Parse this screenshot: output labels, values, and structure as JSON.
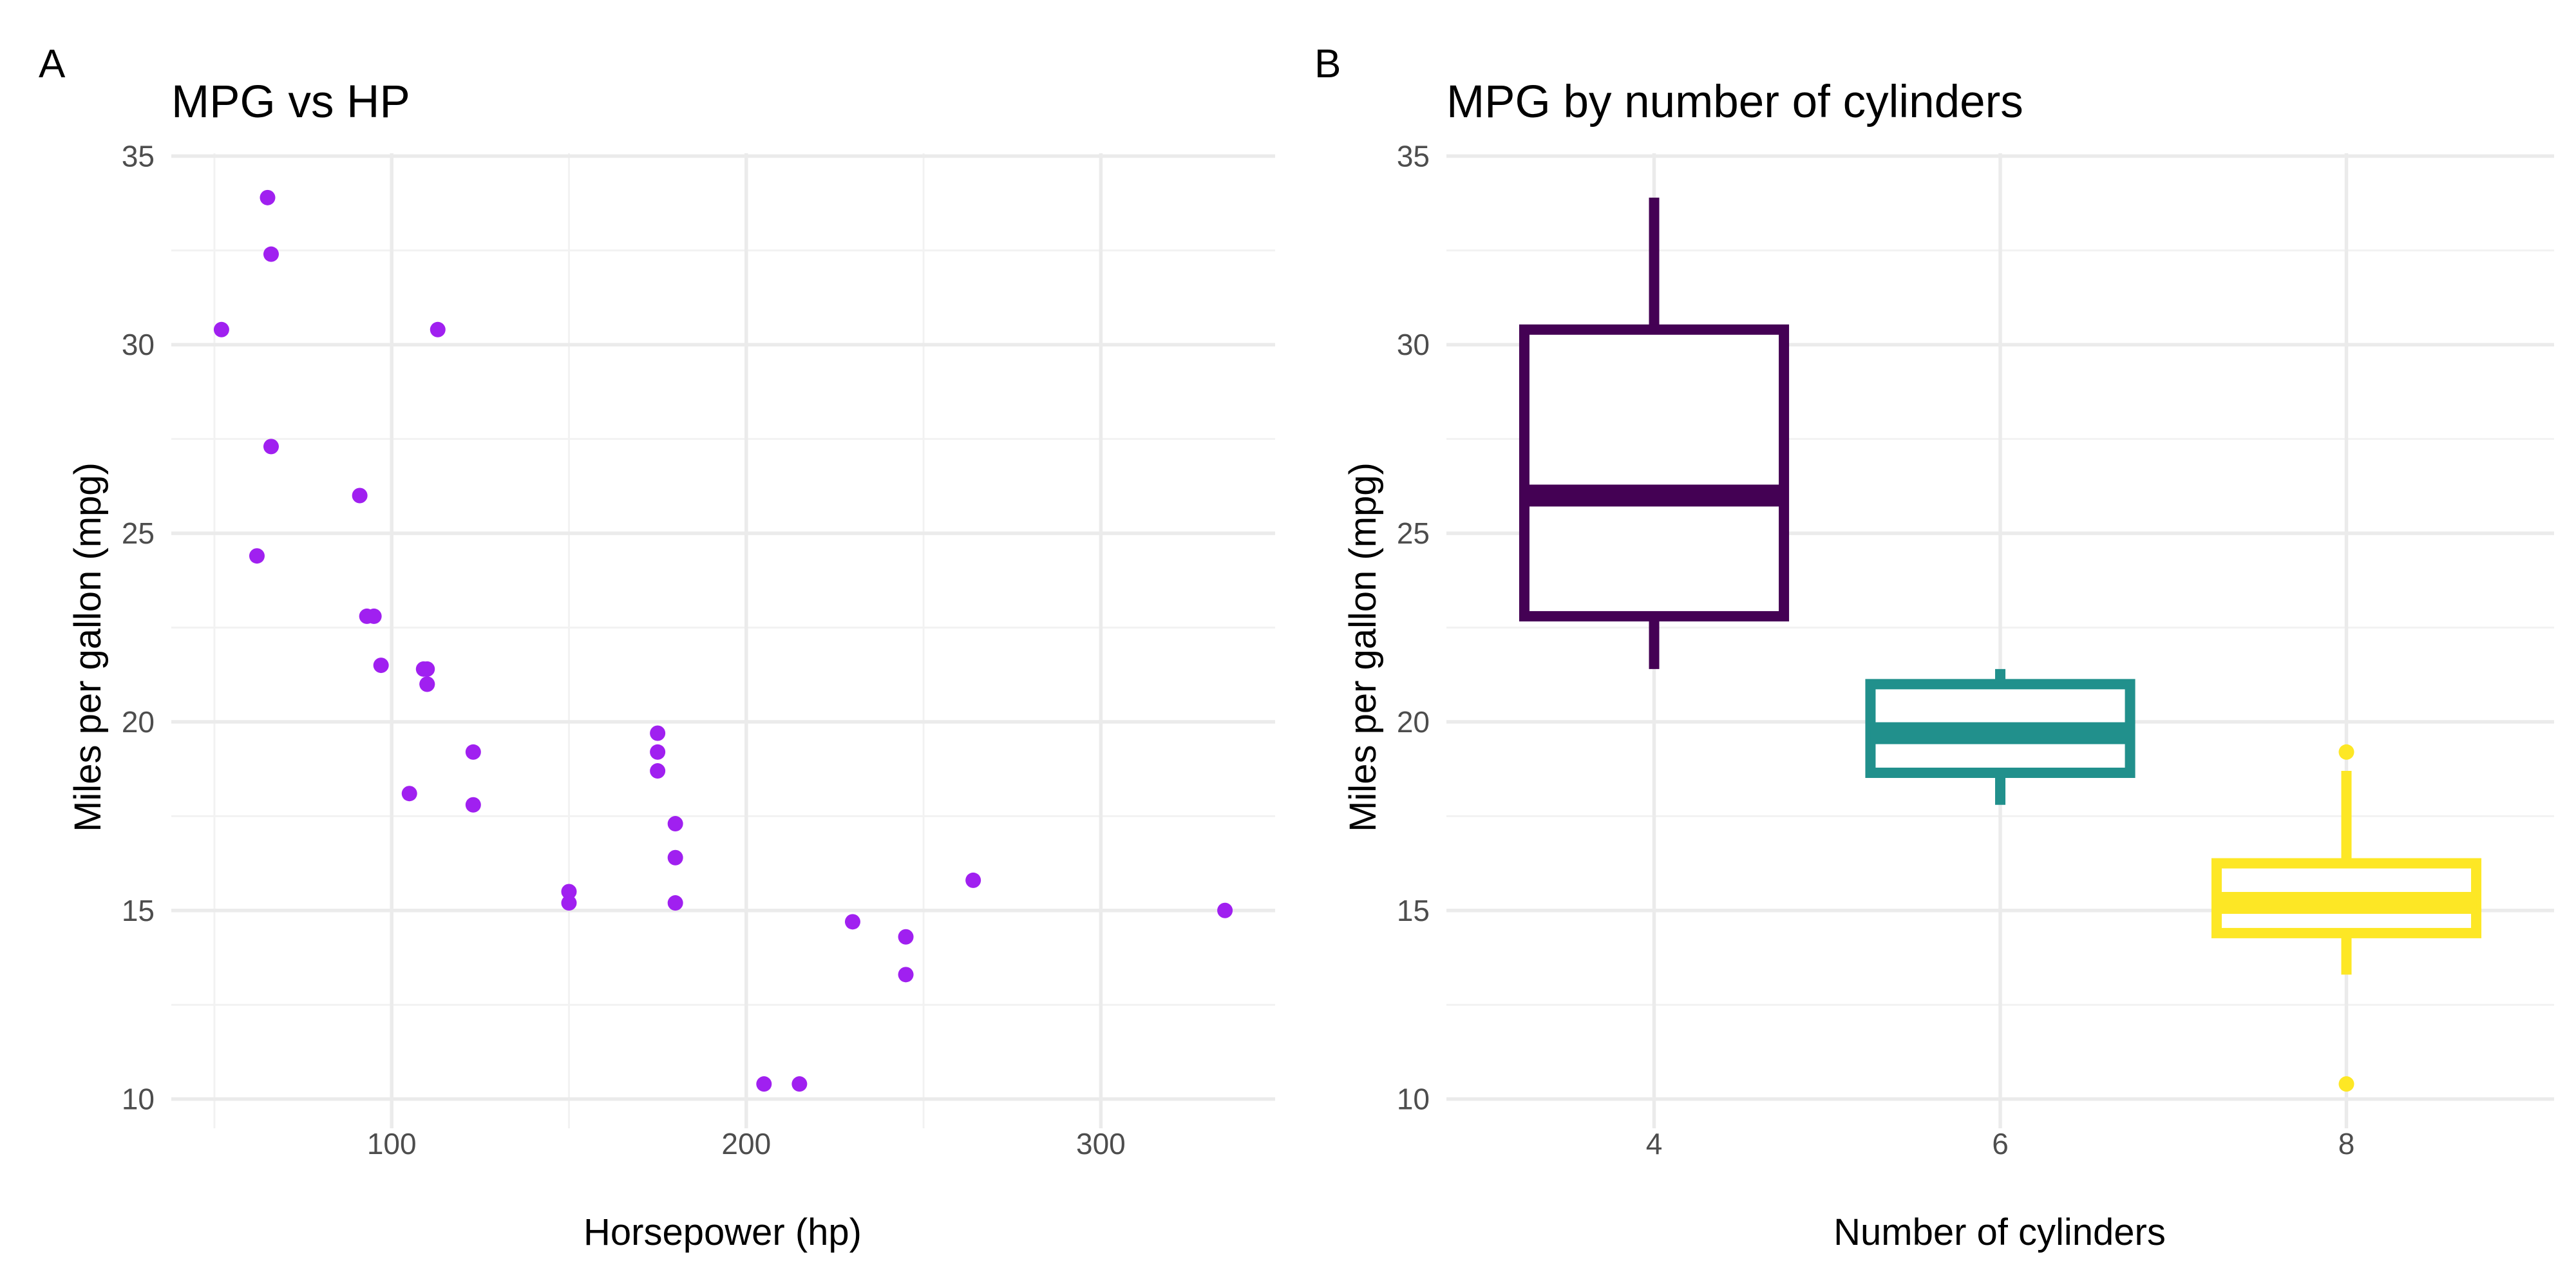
{
  "panels": [
    {
      "tag": "A",
      "title": "MPG vs HP",
      "xlabel": "Horsepower (hp)",
      "ylabel": "Miles per gallon (mpg)"
    },
    {
      "tag": "B",
      "title": "MPG by number of cylinders",
      "xlabel": "Number of cylinders",
      "ylabel": "Miles per gallon (mpg)"
    }
  ],
  "chart_data": [
    {
      "type": "scatter",
      "title": "MPG vs HP",
      "xlabel": "Horsepower (hp)",
      "ylabel": "Miles per gallon (mpg)",
      "xlim": [
        52,
        335
      ],
      "ylim": [
        10.4,
        33.9
      ],
      "x_ticks": [
        100,
        200,
        300
      ],
      "y_ticks": [
        10,
        15,
        20,
        25,
        30,
        35
      ],
      "grid": true,
      "point_color": "#a020f0",
      "points": [
        {
          "x": 52,
          "y": 30.4
        },
        {
          "x": 62,
          "y": 24.4
        },
        {
          "x": 65,
          "y": 33.9
        },
        {
          "x": 66,
          "y": 32.4
        },
        {
          "x": 66,
          "y": 27.3
        },
        {
          "x": 91,
          "y": 26.0
        },
        {
          "x": 93,
          "y": 22.8
        },
        {
          "x": 95,
          "y": 22.8
        },
        {
          "x": 97,
          "y": 21.5
        },
        {
          "x": 105,
          "y": 18.1
        },
        {
          "x": 109,
          "y": 21.4
        },
        {
          "x": 110,
          "y": 21.0
        },
        {
          "x": 110,
          "y": 21.0
        },
        {
          "x": 110,
          "y": 21.4
        },
        {
          "x": 113,
          "y": 30.4
        },
        {
          "x": 123,
          "y": 19.2
        },
        {
          "x": 123,
          "y": 17.8
        },
        {
          "x": 150,
          "y": 15.5
        },
        {
          "x": 150,
          "y": 15.2
        },
        {
          "x": 175,
          "y": 18.7
        },
        {
          "x": 175,
          "y": 19.2
        },
        {
          "x": 175,
          "y": 19.7
        },
        {
          "x": 180,
          "y": 16.4
        },
        {
          "x": 180,
          "y": 17.3
        },
        {
          "x": 180,
          "y": 15.2
        },
        {
          "x": 205,
          "y": 10.4
        },
        {
          "x": 215,
          "y": 10.4
        },
        {
          "x": 230,
          "y": 14.7
        },
        {
          "x": 245,
          "y": 14.3
        },
        {
          "x": 245,
          "y": 13.3
        },
        {
          "x": 264,
          "y": 15.8
        },
        {
          "x": 335,
          "y": 15.0
        }
      ]
    },
    {
      "type": "box",
      "title": "MPG by number of cylinders",
      "xlabel": "Number of cylinders",
      "ylabel": "Miles per gallon (mpg)",
      "categories": [
        "4",
        "6",
        "8"
      ],
      "ylim": [
        10.4,
        33.9
      ],
      "y_ticks": [
        10,
        15,
        20,
        25,
        30,
        35
      ],
      "grid": true,
      "boxes": [
        {
          "category": "4",
          "color": "#440154",
          "whisker_low": 21.4,
          "q1": 22.8,
          "median": 26.0,
          "q3": 30.4,
          "whisker_high": 33.9,
          "outliers": []
        },
        {
          "category": "6",
          "color": "#21908c",
          "whisker_low": 17.8,
          "q1": 18.65,
          "median": 19.7,
          "q3": 21.0,
          "whisker_high": 21.4,
          "outliers": []
        },
        {
          "category": "8",
          "color": "#fde725",
          "whisker_low": 13.3,
          "q1": 14.4,
          "median": 15.2,
          "q3": 16.25,
          "whisker_high": 18.7,
          "outliers": [
            19.2,
            10.4
          ]
        }
      ]
    }
  ]
}
